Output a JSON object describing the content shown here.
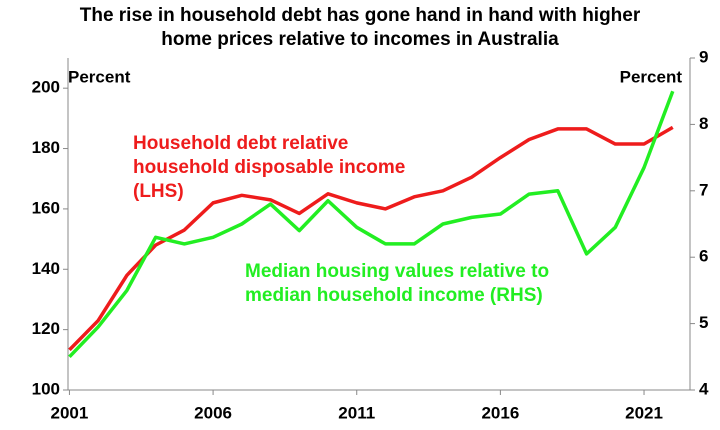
{
  "chart_data": {
    "type": "line",
    "title": "The rise in household debt has gone hand in hand with higher home prices relative to incomes in Australia",
    "annotations": [
      "Percent",
      "Percent"
    ],
    "x": [
      2001,
      2002,
      2003,
      2004,
      2005,
      2006,
      2007,
      2008,
      2009,
      2010,
      2011,
      2012,
      2013,
      2014,
      2015,
      2016,
      2017,
      2018,
      2019,
      2020,
      2021,
      2022
    ],
    "xlim": [
      2000.95,
      2022.6
    ],
    "xticks": [
      2001,
      2006,
      2011,
      2016,
      2021
    ],
    "ylim": [
      100,
      210
    ],
    "yticks": [
      100,
      120,
      140,
      160,
      180,
      200
    ],
    "y2lim": [
      4,
      9
    ],
    "y2ticks": [
      4,
      5,
      6,
      7,
      8,
      9
    ],
    "series": [
      {
        "name": "Household debt relative household disposable income (LHS)",
        "color": "#ee1c1c",
        "values": [
          113.3,
          123,
          138,
          148,
          153,
          162,
          164.5,
          163,
          158.5,
          165,
          162,
          160,
          164,
          166,
          170.5,
          177,
          183,
          186.5,
          186.5,
          181.5,
          181.5,
          187
        ]
      },
      {
        "name": "Median housing values relative to median household income (RHS)",
        "color": "#22ee22",
        "axis": "y2",
        "values": [
          4.5,
          4.95,
          5.5,
          6.3,
          6.2,
          6.3,
          6.5,
          6.8,
          6.4,
          6.85,
          6.45,
          6.2,
          6.2,
          6.5,
          6.6,
          6.65,
          6.95,
          7.0,
          6.05,
          6.45,
          7.35,
          8.5
        ]
      }
    ]
  }
}
